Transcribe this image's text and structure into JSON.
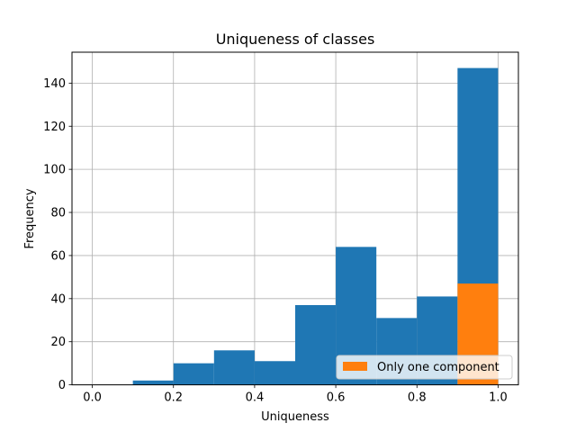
{
  "chart_data": {
    "type": "bar",
    "title": "Uniqueness of classes",
    "xlabel": "Uniqueness",
    "ylabel": "Frequency",
    "xlim": [
      -0.05,
      1.05
    ],
    "ylim": [
      0,
      154.35
    ],
    "grid": true,
    "xticks": [
      0.0,
      0.2,
      0.4,
      0.6,
      0.8,
      1.0
    ],
    "xtick_labels": [
      "0.0",
      "0.2",
      "0.4",
      "0.6",
      "0.8",
      "1.0"
    ],
    "yticks": [
      0,
      20,
      40,
      60,
      80,
      100,
      120,
      140
    ],
    "ytick_labels": [
      "0",
      "20",
      "40",
      "60",
      "80",
      "100",
      "120",
      "140"
    ],
    "legend_placement": "lower-right",
    "series": [
      {
        "color": "#1f77b4",
        "bins": [
          {
            "start": 0.0,
            "end": 0.1,
            "value": 0
          },
          {
            "start": 0.1,
            "end": 0.2,
            "value": 2
          },
          {
            "start": 0.2,
            "end": 0.3,
            "value": 10
          },
          {
            "start": 0.3,
            "end": 0.4,
            "value": 16
          },
          {
            "start": 0.4,
            "end": 0.5,
            "value": 11
          },
          {
            "start": 0.5,
            "end": 0.6,
            "value": 37
          },
          {
            "start": 0.6,
            "end": 0.7,
            "value": 64
          },
          {
            "start": 0.7,
            "end": 0.8,
            "value": 31
          },
          {
            "start": 0.8,
            "end": 0.9,
            "value": 41
          },
          {
            "start": 0.9,
            "end": 1.0,
            "value": 147
          }
        ]
      },
      {
        "name": "Only one component",
        "color": "#ff7f0e",
        "bins": [
          {
            "start": 0.9,
            "end": 1.0,
            "value": 47
          }
        ]
      }
    ]
  }
}
